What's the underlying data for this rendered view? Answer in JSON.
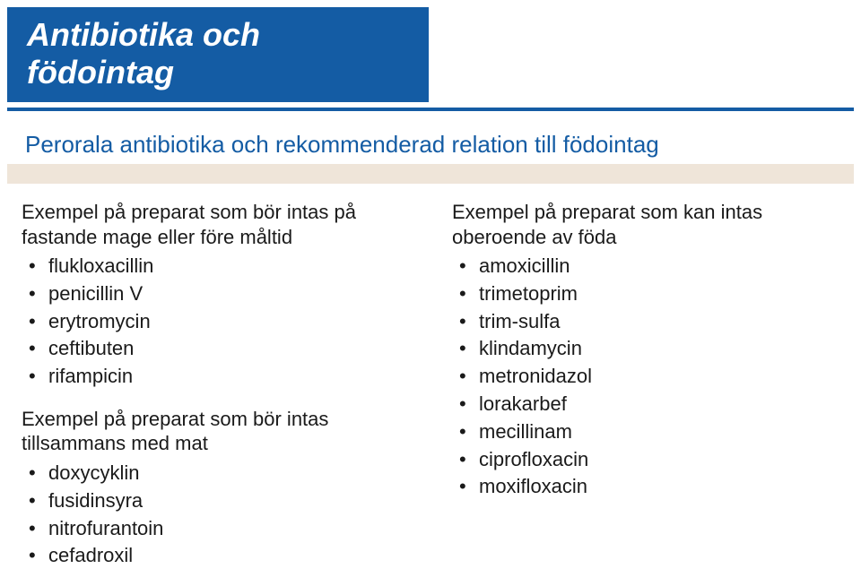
{
  "title": "Antibiotika och födointag",
  "subtitle": "Perorala antibiotika och rekommenderad relation till födointag",
  "colors": {
    "primary": "#145ca4",
    "underline": "#efe5d9",
    "text": "#1a1a1a",
    "background": "#ffffff"
  },
  "left_column": {
    "groups": [
      {
        "heading": "Exempel på preparat som bör intas på fastande mage eller före måltid",
        "items": [
          "flukloxacillin",
          "penicillin V",
          "erytromycin",
          "ceftibuten",
          "rifampicin"
        ]
      },
      {
        "heading": "Exempel på preparat som bör intas tillsammans med mat",
        "items": [
          "doxycyklin",
          "fusidinsyra",
          "nitrofurantoin",
          "cefadroxil"
        ]
      }
    ]
  },
  "right_column": {
    "groups": [
      {
        "heading": "Exempel på preparat som kan intas oberoende av föda",
        "items": [
          "amoxicillin",
          "trimetoprim",
          "trim-sulfa",
          "klindamycin",
          "metronidazol",
          "lorakarbef",
          "mecillinam",
          "ciprofloxacin",
          "moxifloxacin"
        ]
      }
    ]
  }
}
